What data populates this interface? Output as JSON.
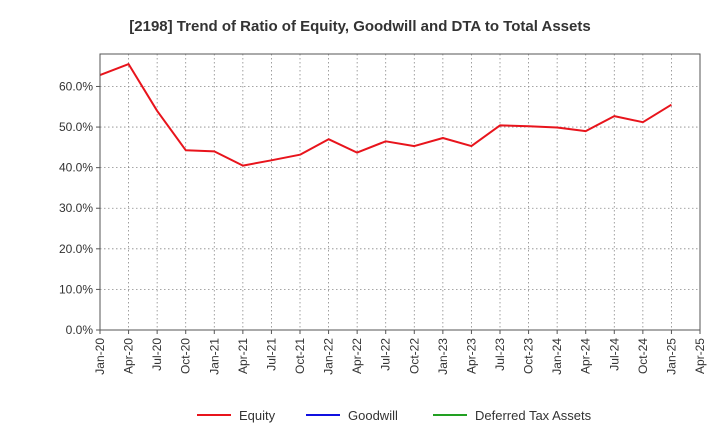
{
  "chart_data": {
    "type": "line",
    "title": "[2198]  Trend of Ratio of Equity, Goodwill and DTA to Total Assets",
    "xlabel": "",
    "ylabel": "",
    "x_tick_labels": [
      "Jan-20",
      "Apr-20",
      "Jul-20",
      "Oct-20",
      "Jan-21",
      "Apr-21",
      "Jul-21",
      "Oct-21",
      "Jan-22",
      "Apr-22",
      "Jul-22",
      "Oct-22",
      "Jan-23",
      "Apr-23",
      "Jul-23",
      "Oct-23",
      "Jan-24",
      "Apr-24",
      "Jul-24",
      "Oct-24",
      "Jan-25",
      "Apr-25"
    ],
    "y_tick_labels": [
      "0.0%",
      "10.0%",
      "20.0%",
      "30.0%",
      "40.0%",
      "50.0%",
      "60.0%"
    ],
    "y_ticks": [
      0,
      10,
      20,
      30,
      40,
      50,
      60
    ],
    "ylim": [
      0,
      68
    ],
    "grid": true,
    "legend_position": "bottom",
    "series": [
      {
        "name": "Equity",
        "color": "#e8141c",
        "x": [
          "Jan-20",
          "Apr-20",
          "Jul-20",
          "Oct-20",
          "Jan-21",
          "Apr-21",
          "Jul-21",
          "Oct-21",
          "Jan-22",
          "Apr-22",
          "Jul-22",
          "Oct-22",
          "Jan-23",
          "Apr-23",
          "Jul-23",
          "Oct-23",
          "Jan-24",
          "Apr-24",
          "Jul-24",
          "Oct-24",
          "Jan-25"
        ],
        "values": [
          62.8,
          65.5,
          54.0,
          44.3,
          44.0,
          40.5,
          41.8,
          43.2,
          47.0,
          43.7,
          46.5,
          45.3,
          47.3,
          45.3,
          50.4,
          50.2,
          49.9,
          49.0,
          52.7,
          51.2,
          55.5
        ]
      },
      {
        "name": "Goodwill",
        "color": "#1010e0",
        "x": [],
        "values": []
      },
      {
        "name": "Deferred Tax Assets",
        "color": "#22a022",
        "x": [],
        "values": []
      }
    ]
  }
}
